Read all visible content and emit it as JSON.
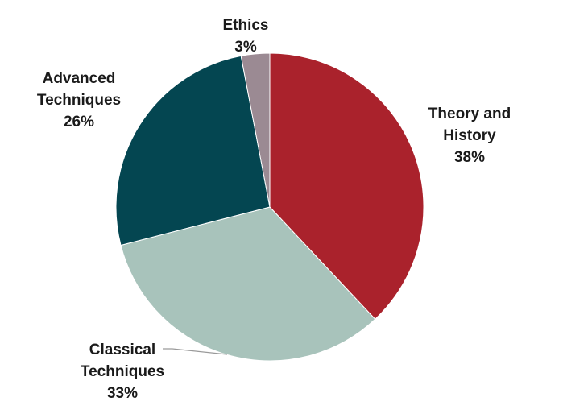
{
  "chart_data": {
    "type": "pie",
    "slices": [
      {
        "label_lines": [
          "Theory and",
          "History"
        ],
        "percent_label": "38%",
        "value": 38,
        "color": "#aa222c"
      },
      {
        "label_lines": [
          "Classical",
          "Techniques"
        ],
        "percent_label": "33%",
        "value": 33,
        "color": "#a8c3bb"
      },
      {
        "label_lines": [
          "Advanced",
          "Techniques"
        ],
        "percent_label": "26%",
        "value": 26,
        "color": "#044651"
      },
      {
        "label_lines": [
          "Ethics"
        ],
        "percent_label": "3%",
        "value": 3,
        "color": "#9b8a93"
      }
    ]
  }
}
